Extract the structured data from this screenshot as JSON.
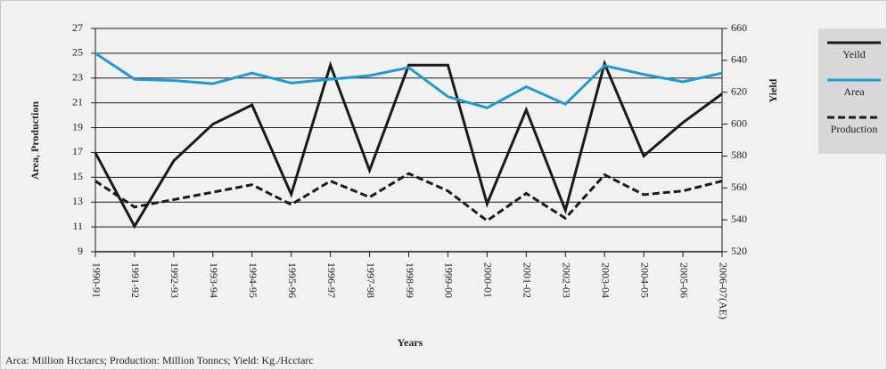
{
  "chart_data": {
    "type": "line",
    "y_label": "Area, Production",
    "y2_label": "Yield",
    "x_label": "Years",
    "footnote": "Arca: Million Hcctarcs; Production: Million Tonncs; Yield: Kg./Hcctarc",
    "categories": [
      "1990-91",
      "1991-92",
      "1992-93",
      "1993-94",
      "1994-95",
      "1995-96",
      "1996-97",
      "1997-98",
      "1998-99",
      "1999-00",
      "2000-01",
      "2001-02",
      "2002-03",
      "2003-04",
      "2004-05",
      "2005-06",
      "2006-07(AE)"
    ],
    "series": [
      {
        "name": "Yeild",
        "color": "#1a1a1a",
        "line_style": "solid",
        "axis": "y2",
        "values": [
          582,
          536,
          577,
          600,
          612,
          556,
          637,
          571,
          637,
          637,
          550,
          609,
          546,
          638,
          580,
          601,
          619
        ]
      },
      {
        "name": "Area",
        "color": "#1e9ad6",
        "line_style": "solid",
        "values": [
          25.0,
          22.9,
          22.8,
          22.55,
          23.4,
          22.6,
          22.9,
          23.2,
          23.85,
          21.5,
          20.6,
          22.3,
          20.9,
          24.0,
          23.3,
          22.7,
          23.4
        ]
      },
      {
        "name": "Production",
        "color": "#1a1a1a",
        "line_style": "dashed",
        "values": [
          14.7,
          12.6,
          13.2,
          13.8,
          14.4,
          12.8,
          14.7,
          13.4,
          15.3,
          13.9,
          11.5,
          13.7,
          11.7,
          15.2,
          13.6,
          13.9,
          14.7
        ]
      }
    ],
    "ylim": [
      9,
      27
    ],
    "yticks": [
      9,
      11,
      13,
      15,
      17,
      19,
      21,
      23,
      25,
      27
    ],
    "y2lim": [
      520,
      660
    ],
    "y2ticks": [
      520,
      540,
      560,
      580,
      600,
      620,
      640,
      660
    ],
    "grid": true,
    "legend": "right"
  }
}
